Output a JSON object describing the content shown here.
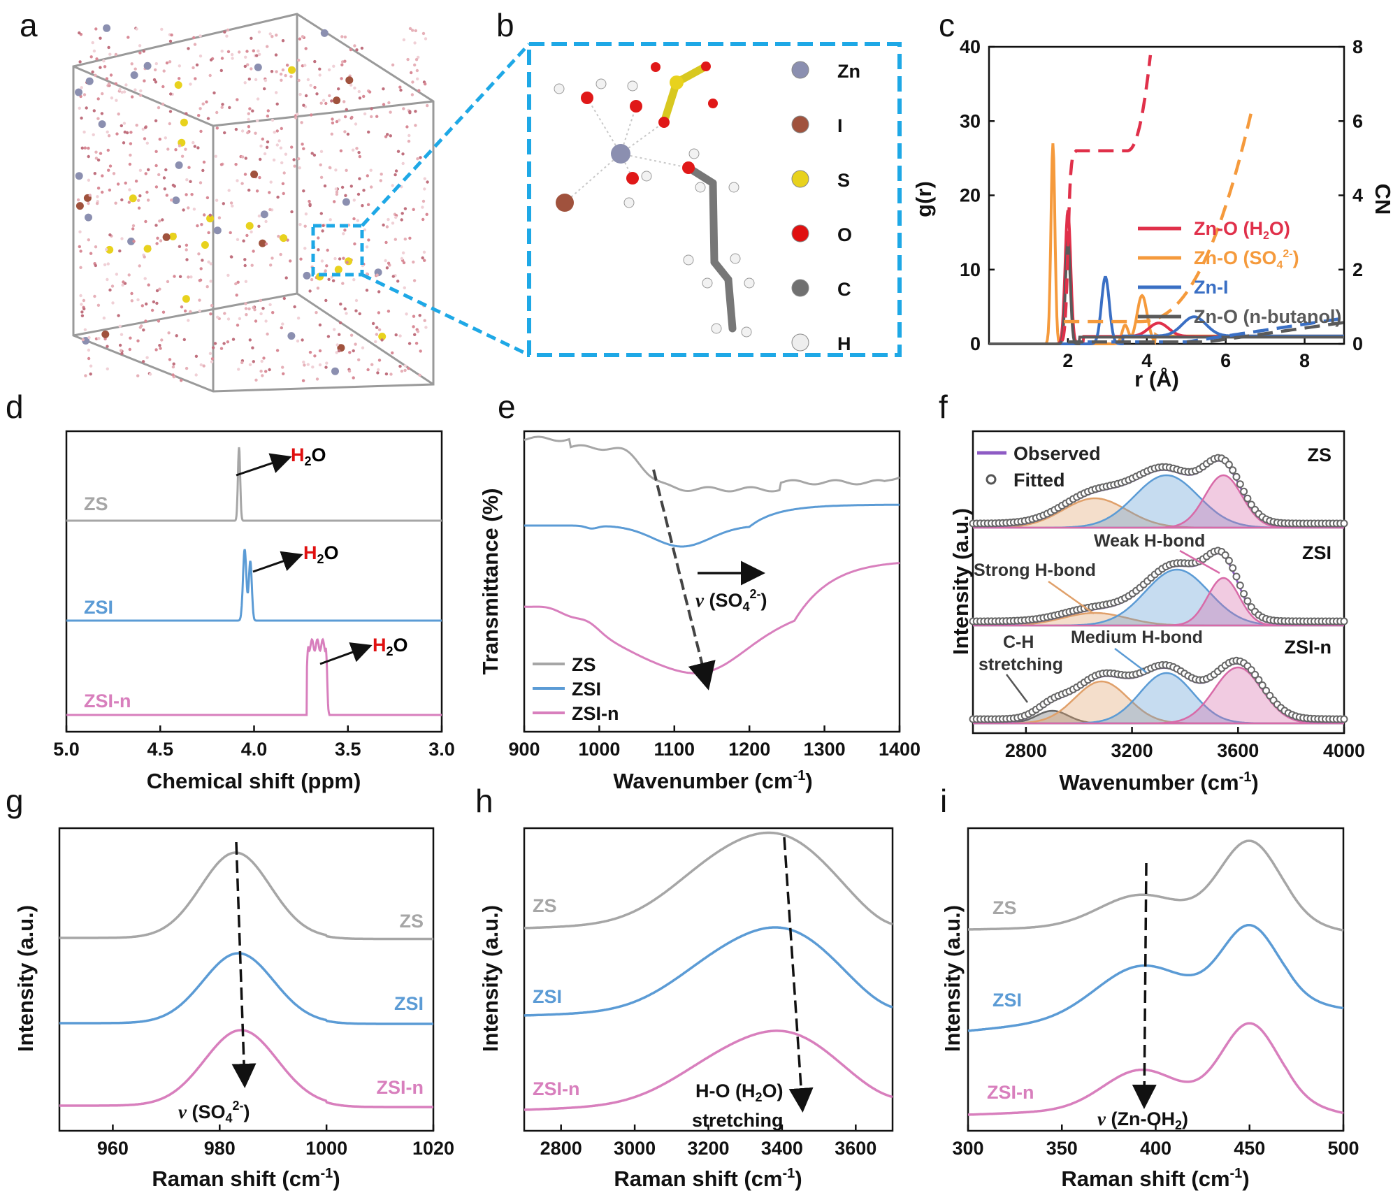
{
  "panels": {
    "a": {
      "label": "a"
    },
    "b": {
      "label": "b",
      "legend": [
        {
          "el": "Zn",
          "color": "#8b8fb0"
        },
        {
          "el": "I",
          "color": "#a0523d"
        },
        {
          "el": "S",
          "color": "#e8d21d"
        },
        {
          "el": "O",
          "color": "#e01010"
        },
        {
          "el": "C",
          "color": "#707070"
        },
        {
          "el": "H",
          "color": "#eeeeee"
        }
      ]
    },
    "c": {
      "label": "c"
    },
    "d": {
      "label": "d"
    },
    "e": {
      "label": "e"
    },
    "f": {
      "label": "f"
    },
    "g": {
      "label": "g"
    },
    "h": {
      "label": "h"
    },
    "i": {
      "label": "i"
    }
  },
  "colors": {
    "ZS": "#a6a6a6",
    "ZSI": "#5b9bd5",
    "ZSIn": "#d87fbd",
    "red": "#e0304a",
    "orange": "#f59a3c",
    "blue": "#3a6fc4",
    "dark": "#5a5a5a"
  },
  "text": {
    "h2o": "H2O",
    "nu_so4": "ν (SO4 2-)",
    "observed": "Observed",
    "fitted": "Fitted",
    "weak": "Weak H-bond",
    "strong": "Strong H-bond",
    "medium": "Medium H-bond",
    "ch1": "C-H",
    "ch2": "stretching",
    "ho_stretch1": "H-O (H2O)",
    "ho_stretch2": "stretching",
    "nu_znoh2": "ν (Zn-OH2)"
  },
  "chart_data": [
    {
      "panel": "c",
      "type": "line",
      "xlabel": "r (Å)",
      "ylabel": "g(r)",
      "y2label": "CN",
      "xlim": [
        0,
        9
      ],
      "ylim": [
        0,
        40
      ],
      "y2lim": [
        0,
        8
      ],
      "xticks": [
        2,
        4,
        6,
        8
      ],
      "yticks": [
        0,
        10,
        20,
        30,
        40
      ],
      "y2ticks": [
        0,
        2,
        4,
        6,
        8
      ],
      "series": [
        {
          "name": "Zn-O (H2O)",
          "color": "#e0304a",
          "peaks": [
            [
              2.0,
              18
            ],
            [
              4.3,
              2
            ]
          ]
        },
        {
          "name": "Zn-O (SO4 2-)",
          "color": "#f59a3c",
          "peaks": [
            [
              1.6,
              27
            ],
            [
              3.9,
              6.5
            ]
          ]
        },
        {
          "name": "Zn-I",
          "color": "#3a6fc4",
          "peaks": [
            [
              2.95,
              9
            ],
            [
              5.2,
              2.5
            ]
          ]
        },
        {
          "name": "Zn-O (n-butanol)",
          "color": "#5a5a5a",
          "peaks": [
            [
              2.0,
              14
            ]
          ]
        }
      ]
    },
    {
      "panel": "d",
      "type": "line",
      "xlabel": "Chemical shift (ppm)",
      "xlim": [
        5.0,
        3.0
      ],
      "xticks": [
        "5.0",
        "4.5",
        "4.0",
        "3.5",
        "3.0"
      ],
      "series": [
        {
          "name": "ZS",
          "peak_ppm": 4.08
        },
        {
          "name": "ZSI",
          "peak_ppm": 4.03
        },
        {
          "name": "ZSI-n",
          "peak_ppm": 3.67
        }
      ]
    },
    {
      "panel": "e",
      "type": "line",
      "xlabel": "Wavenumber (cm-1)",
      "ylabel": "Transmittance (%)",
      "xlim": [
        900,
        1400
      ],
      "xticks": [
        900,
        1000,
        1100,
        1200,
        1300,
        1400
      ],
      "series": [
        {
          "name": "ZS",
          "min_cm": 1080
        },
        {
          "name": "ZSI",
          "min_cm": 1110
        },
        {
          "name": "ZSI-n",
          "min_cm": 1140
        }
      ]
    },
    {
      "panel": "f",
      "type": "area",
      "xlabel": "Wavenumber (cm-1)",
      "ylabel": "Intensity (a.u.)",
      "xlim": [
        2600,
        4000
      ],
      "xticks": [
        2800,
        3200,
        3600,
        4000
      ],
      "series": [
        {
          "name": "ZS"
        },
        {
          "name": "ZSI"
        },
        {
          "name": "ZSI-n"
        }
      ]
    },
    {
      "panel": "g",
      "type": "line",
      "xlabel": "Raman shift (cm-1)",
      "ylabel": "Intensity (a.u.)",
      "xlim": [
        950,
        1020
      ],
      "xticks": [
        960,
        980,
        1000,
        1020
      ],
      "series": [
        {
          "name": "ZS",
          "peak": 983
        },
        {
          "name": "ZSI",
          "peak": 983.5
        },
        {
          "name": "ZSI-n",
          "peak": 984
        }
      ]
    },
    {
      "panel": "h",
      "type": "line",
      "xlabel": "Raman shift (cm-1)",
      "ylabel": "Intensity (a.u.)",
      "xlim": [
        2700,
        3700
      ],
      "xticks": [
        2800,
        3000,
        3200,
        3400,
        3600
      ],
      "series": [
        {
          "name": "ZS",
          "peak": 3400
        },
        {
          "name": "ZSI",
          "peak": 3420
        },
        {
          "name": "ZSI-n",
          "peak": 3430
        }
      ]
    },
    {
      "panel": "i",
      "type": "line",
      "xlabel": "Raman shift (cm-1)",
      "ylabel": "Intensity (a.u.)",
      "xlim": [
        300,
        500
      ],
      "xticks": [
        300,
        350,
        400,
        450,
        500
      ],
      "series": [
        {
          "name": "ZS",
          "peaks": [
            392,
            450
          ]
        },
        {
          "name": "ZSI",
          "peaks": [
            392,
            450
          ]
        },
        {
          "name": "ZSI-n",
          "peaks": [
            392,
            450
          ]
        }
      ]
    }
  ]
}
